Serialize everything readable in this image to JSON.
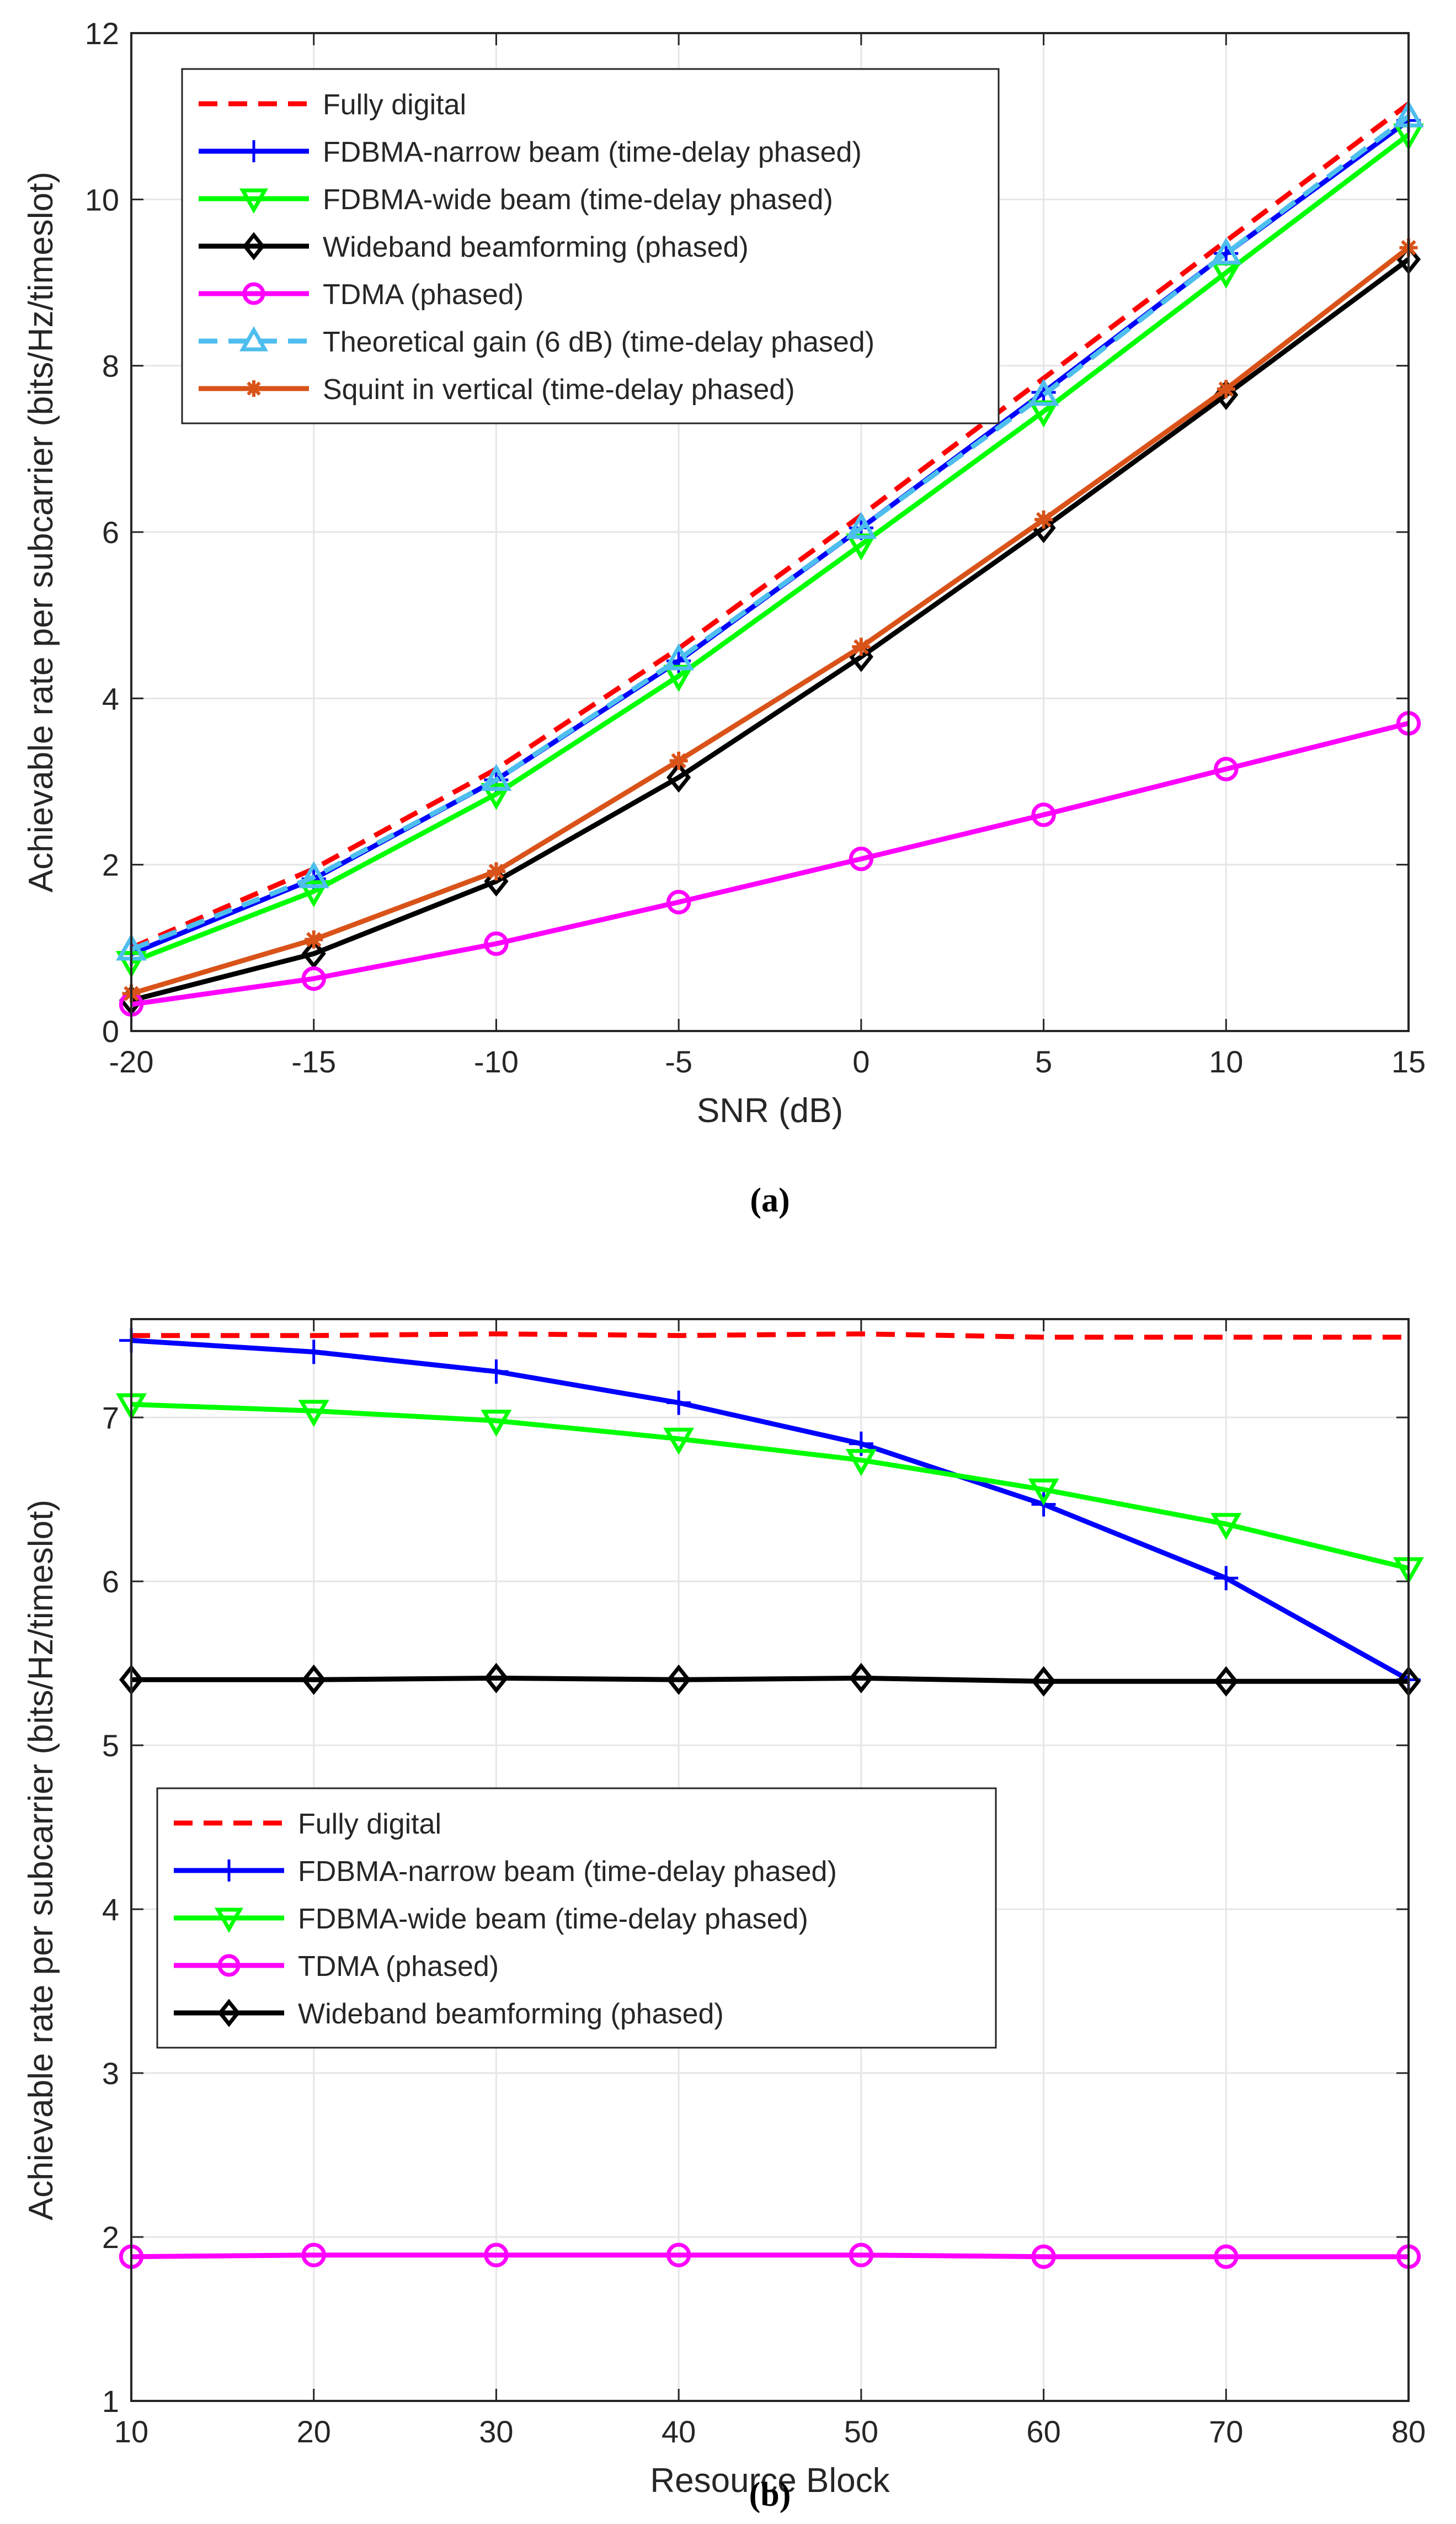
{
  "chart_data": [
    {
      "type": "line",
      "caption": "(a)",
      "xlabel": "SNR (dB)",
      "ylabel": "Achievable rate per subcarrier (bits/Hz/timeslot)",
      "x": [
        -20,
        -15,
        -10,
        -5,
        0,
        5,
        10,
        15
      ],
      "xlim": [
        -20,
        15
      ],
      "ylim": [
        0,
        12
      ],
      "xticks": [
        -20,
        -15,
        -10,
        -5,
        0,
        5,
        10,
        15
      ],
      "yticks": [
        0,
        2,
        4,
        6,
        8,
        10,
        12
      ],
      "grid": true,
      "legend_position": "top-left",
      "series": [
        {
          "name": "Fully digital",
          "color": "#ff0000",
          "dash": "dashed",
          "marker": "none",
          "values": [
            1.0,
            1.95,
            3.15,
            4.6,
            6.2,
            7.85,
            9.5,
            11.15
          ]
        },
        {
          "name": "FDBMA-narrow beam (time-delay phased)",
          "color": "#0000ff",
          "dash": "solid",
          "marker": "plus",
          "values": [
            0.93,
            1.83,
            3.02,
            4.45,
            6.05,
            7.68,
            9.35,
            10.95
          ]
        },
        {
          "name": "FDBMA-wide beam (time-delay phased)",
          "color": "#00ff00",
          "dash": "solid",
          "marker": "triangle-down",
          "values": [
            0.83,
            1.68,
            2.85,
            4.27,
            5.85,
            7.45,
            9.12,
            10.78
          ]
        },
        {
          "name": "Wideband beamforming (phased)",
          "color": "#000000",
          "dash": "solid",
          "marker": "diamond",
          "values": [
            0.37,
            0.93,
            1.8,
            3.05,
            4.5,
            6.05,
            7.65,
            9.28
          ]
        },
        {
          "name": "TDMA (phased)",
          "color": "#ff00ff",
          "dash": "solid",
          "marker": "circle",
          "values": [
            0.32,
            0.63,
            1.05,
            1.55,
            2.07,
            2.6,
            3.15,
            3.7
          ]
        },
        {
          "name": "Theoretical gain (6 dB)  (time-delay phased)",
          "color": "#4dbeee",
          "dash": "dashed",
          "marker": "triangle-up",
          "values": [
            0.98,
            1.85,
            3.02,
            4.47,
            6.05,
            7.65,
            9.35,
            11.0
          ]
        },
        {
          "name": "Squint in vertical  (time-delay phased)",
          "color": "#d95319",
          "dash": "solid",
          "marker": "asterisk",
          "values": [
            0.45,
            1.1,
            1.92,
            3.25,
            4.62,
            6.15,
            7.72,
            9.42
          ]
        }
      ]
    },
    {
      "type": "line",
      "caption": "(b)",
      "xlabel": "Resource Block",
      "ylabel": "Achievable rate per subcarrier (bits/Hz/timeslot)",
      "x": [
        10,
        20,
        30,
        40,
        50,
        60,
        70,
        80
      ],
      "xlim": [
        10,
        80
      ],
      "ylim": [
        1,
        7.6
      ],
      "xticks": [
        10,
        20,
        30,
        40,
        50,
        60,
        70,
        80
      ],
      "yticks": [
        1,
        2,
        3,
        4,
        5,
        6,
        7
      ],
      "grid": true,
      "legend_position": "bottom-left",
      "series": [
        {
          "name": "Fully digital",
          "color": "#ff0000",
          "dash": "dashed",
          "marker": "none",
          "values": [
            7.5,
            7.5,
            7.51,
            7.5,
            7.51,
            7.49,
            7.49,
            7.49
          ]
        },
        {
          "name": "FDBMA-narrow beam (time-delay phased)",
          "color": "#0000ff",
          "dash": "solid",
          "marker": "plus",
          "values": [
            7.47,
            7.4,
            7.28,
            7.09,
            6.84,
            6.47,
            6.02,
            5.4
          ]
        },
        {
          "name": "FDBMA-wide beam (time-delay phased)",
          "color": "#00ff00",
          "dash": "solid",
          "marker": "triangle-down",
          "values": [
            7.08,
            7.04,
            6.98,
            6.87,
            6.74,
            6.56,
            6.35,
            6.08
          ]
        },
        {
          "name": "TDMA (phased)",
          "color": "#ff00ff",
          "dash": "solid",
          "marker": "circle",
          "values": [
            1.88,
            1.89,
            1.89,
            1.89,
            1.89,
            1.88,
            1.88,
            1.88
          ]
        },
        {
          "name": "Wideband beamforming (phased)",
          "color": "#000000",
          "dash": "solid",
          "marker": "diamond",
          "values": [
            5.4,
            5.4,
            5.41,
            5.4,
            5.41,
            5.39,
            5.39,
            5.39
          ]
        }
      ]
    }
  ]
}
